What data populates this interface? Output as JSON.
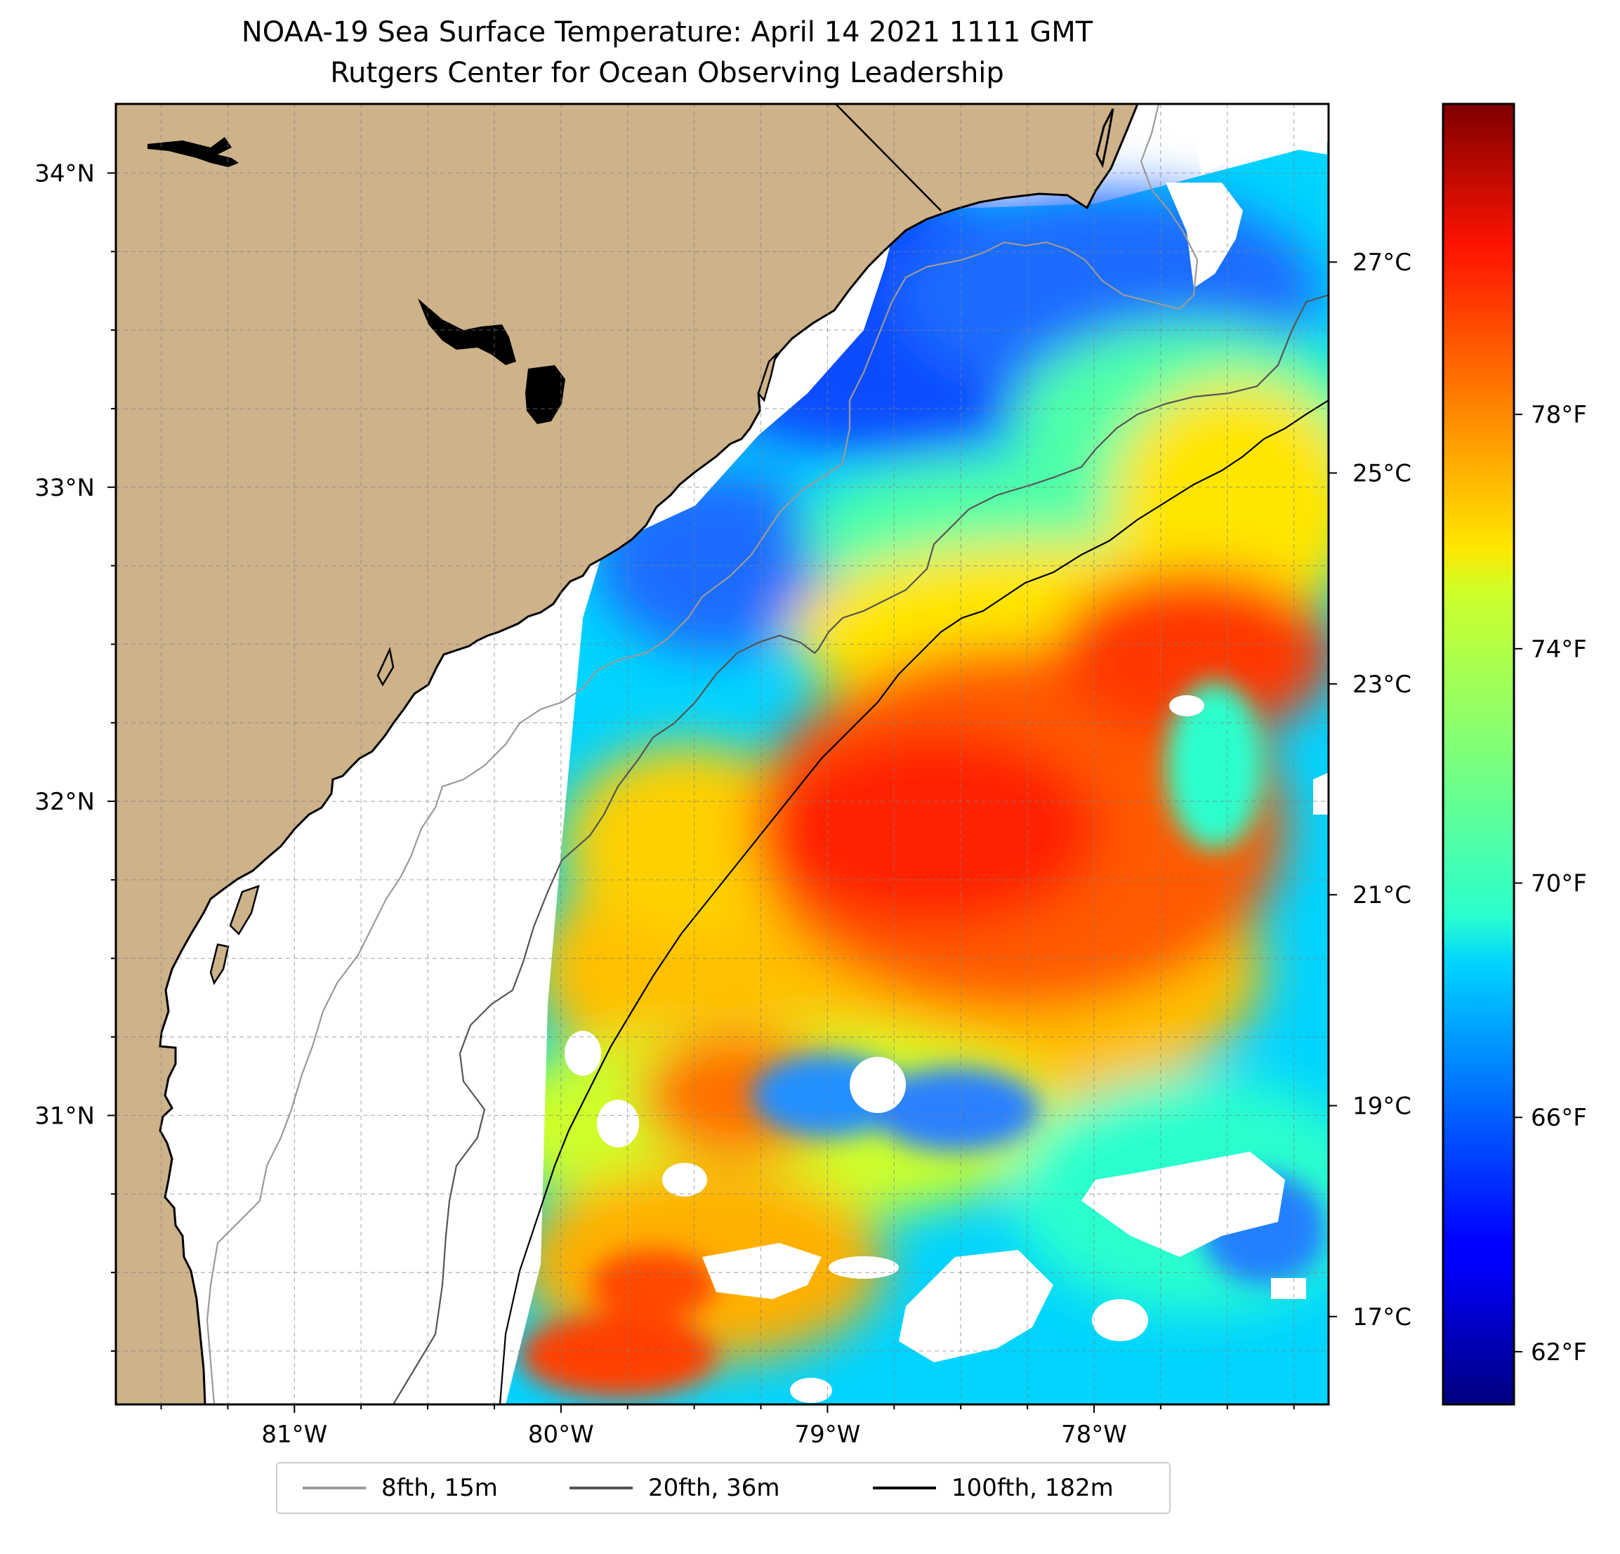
{
  "title": {
    "line1": "NOAA-19 Sea Surface Temperature: April 14 2021 1111 GMT",
    "line2": "Rutgers Center for Ocean Observing Leadership"
  },
  "map": {
    "lon_range": [
      -81.67,
      -77.12
    ],
    "lat_range": [
      30.08,
      34.22
    ],
    "lon_ticks": [
      {
        "value": -81,
        "label": "81°W"
      },
      {
        "value": -80,
        "label": "80°W"
      },
      {
        "value": -79,
        "label": "79°W"
      },
      {
        "value": -78,
        "label": "78°W"
      }
    ],
    "lat_ticks": [
      {
        "value": 34,
        "label": "34°N"
      },
      {
        "value": 33,
        "label": "33°N"
      },
      {
        "value": 32,
        "label": "32°N"
      },
      {
        "value": 31,
        "label": "31°N"
      }
    ],
    "land_color": "#CDB28A",
    "lake_color": "#9DB7E0"
  },
  "colorbar": {
    "colormap": "jet",
    "celsius_ticks": [
      {
        "value": 27,
        "label": "27°C"
      },
      {
        "value": 25,
        "label": "25°C"
      },
      {
        "value": 23,
        "label": "23°C"
      },
      {
        "value": 21,
        "label": "21°C"
      },
      {
        "value": 19,
        "label": "19°C"
      },
      {
        "value": 17,
        "label": "17°C"
      }
    ],
    "fahrenheit_ticks": [
      {
        "value": 78,
        "label": "78°F"
      },
      {
        "value": 74,
        "label": "74°F"
      },
      {
        "value": 70,
        "label": "70°F"
      },
      {
        "value": 66,
        "label": "66°F"
      },
      {
        "value": 62,
        "label": "62°F"
      }
    ],
    "range_f": [
      61.1,
      83.3
    ]
  },
  "legend": {
    "items": [
      {
        "label": "8fth, 15m",
        "color": "#9a9a9a"
      },
      {
        "label": "20fth, 36m",
        "color": "#555555"
      },
      {
        "label": "100fth, 182m",
        "color": "#000000"
      }
    ]
  }
}
